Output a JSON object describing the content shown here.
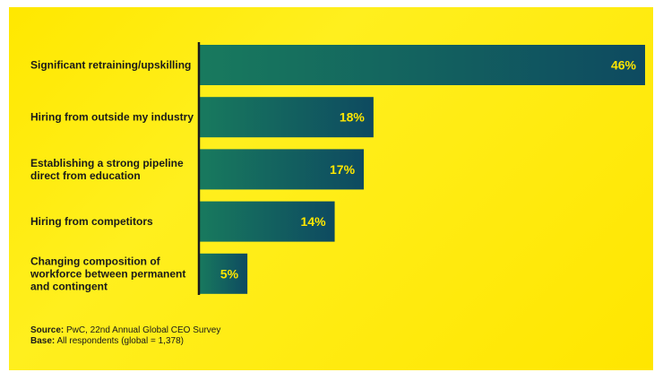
{
  "chart_data": {
    "type": "bar",
    "orientation": "horizontal",
    "categories": [
      [
        "Significant retraining/upskilling"
      ],
      [
        "Hiring from outside my industry"
      ],
      [
        "Establishing a strong pipeline",
        "direct from education"
      ],
      [
        "Hiring from competitors"
      ],
      [
        "Changing composition of",
        "workforce between permanent",
        "and contingent"
      ]
    ],
    "values": [
      46,
      18,
      17,
      14,
      5
    ],
    "value_suffix": "%",
    "xlim": [
      0,
      46
    ],
    "colors": {
      "bar_start": "#187a5e",
      "bar_end": "#0e4a60",
      "value_text": "#ffe600",
      "axis": "#1a1a1a"
    }
  },
  "footer": {
    "source_label": "Source:",
    "source_text": "PwC, 22nd Annual Global CEO Survey",
    "base_label": "Base:",
    "base_text": "All respondents (global = 1,378)"
  }
}
